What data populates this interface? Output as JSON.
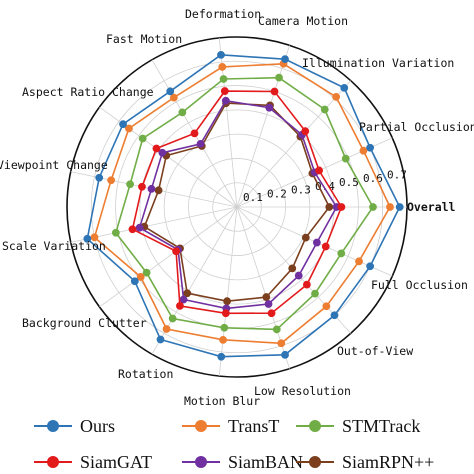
{
  "chart_data": {
    "type": "radar",
    "title": "",
    "axes": [
      "Overall",
      "Partial Occlusion",
      "Illumination Variation",
      "Camera Motion",
      "Deformation",
      "Fast Motion",
      "Aspect Ratio Change",
      "Viewpoint Change",
      "Scale Variation",
      "Background Clutter",
      "Rotation",
      "Motion Blur",
      "Low Resolution",
      "Out-of-View",
      "Full Occlusion"
    ],
    "radial_ticks": [
      "0.1",
      "0.2",
      "0.3",
      "0.4",
      "0.5",
      "0.6",
      "0.7"
    ],
    "range": [
      0,
      0.7
    ],
    "grid": true,
    "legend_position": "bottom",
    "series": [
      {
        "name": "Ours",
        "color": "#2e75b6",
        "values": [
          0.67,
          0.6,
          0.66,
          0.64,
          0.63,
          0.55,
          0.58,
          0.58,
          0.63,
          0.52,
          0.63,
          0.62,
          0.64,
          0.6,
          0.6
        ]
      },
      {
        "name": "TransT",
        "color": "#ed7d31",
        "values": [
          0.63,
          0.57,
          0.61,
          0.62,
          0.58,
          0.52,
          0.55,
          0.53,
          0.6,
          0.49,
          0.58,
          0.55,
          0.59,
          0.55,
          0.55
        ]
      },
      {
        "name": "STMTrack",
        "color": "#70ad47",
        "values": [
          0.56,
          0.49,
          0.54,
          0.56,
          0.53,
          0.45,
          0.48,
          0.45,
          0.51,
          0.46,
          0.53,
          0.5,
          0.53,
          0.48,
          0.47
        ]
      },
      {
        "name": "SiamGAT",
        "color": "#e31a1c",
        "values": [
          0.43,
          0.37,
          0.42,
          0.5,
          0.48,
          0.35,
          0.41,
          0.4,
          0.44,
          0.31,
          0.47,
          0.44,
          0.46,
          0.43,
          0.4
        ]
      },
      {
        "name": "SiamBAN",
        "color": "#7030a0",
        "values": [
          0.41,
          0.35,
          0.4,
          0.43,
          0.44,
          0.3,
          0.38,
          0.36,
          0.41,
          0.3,
          0.44,
          0.42,
          0.42,
          0.38,
          0.36
        ]
      },
      {
        "name": "SiamRPN++",
        "color": "#7b3f1e",
        "values": [
          0.38,
          0.34,
          0.39,
          0.44,
          0.43,
          0.29,
          0.36,
          0.33,
          0.39,
          0.29,
          0.41,
          0.39,
          0.39,
          0.34,
          0.31
        ]
      }
    ]
  }
}
